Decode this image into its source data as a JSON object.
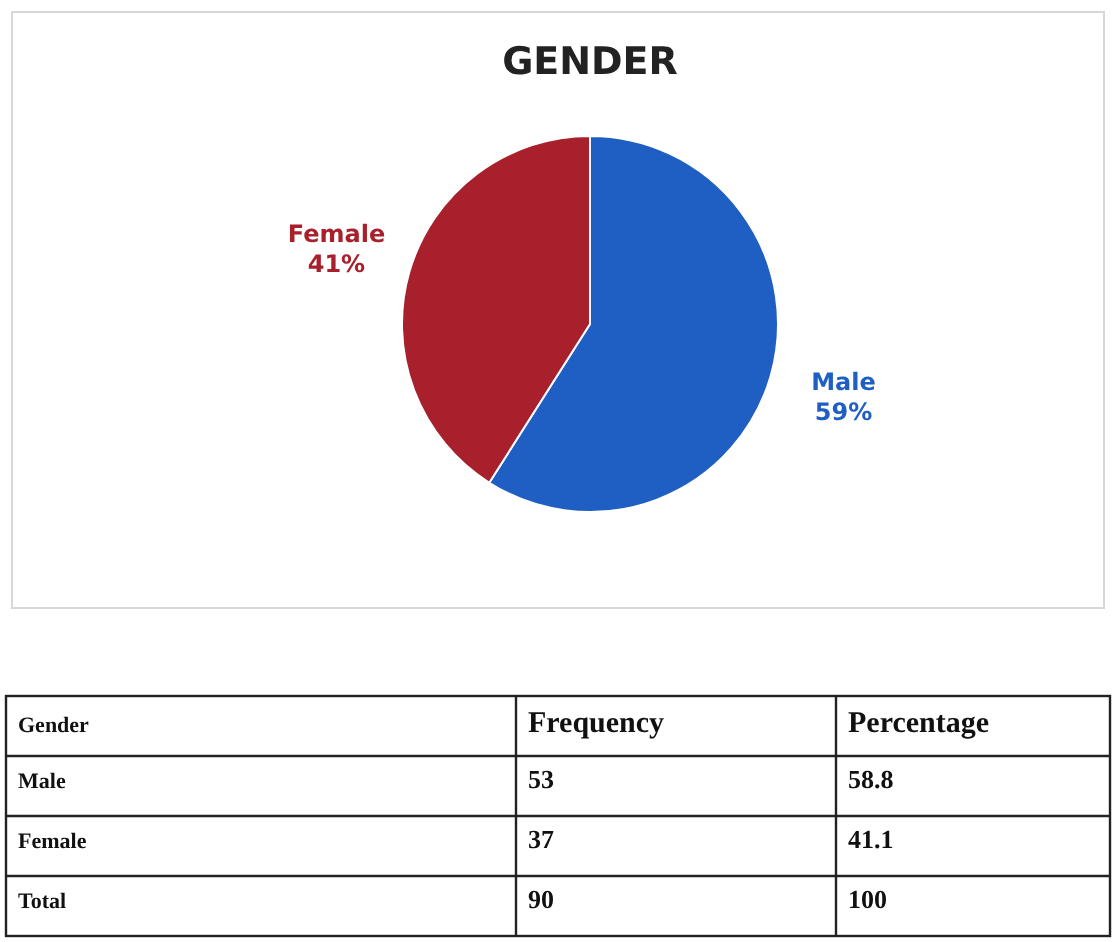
{
  "chart_data": {
    "type": "pie",
    "title": "GENDER",
    "categories": [
      "Male",
      "Female"
    ],
    "values": [
      59,
      41
    ],
    "value_labels": [
      "59%",
      "41%"
    ],
    "colors": [
      "#1f5fc4",
      "#a8202c"
    ],
    "annotations": [
      "Gender",
      "Frequency",
      "Percentage",
      "Male",
      "53",
      "58.8",
      "Female",
      "37",
      "41.1",
      "Total",
      "90",
      "100"
    ]
  }
}
